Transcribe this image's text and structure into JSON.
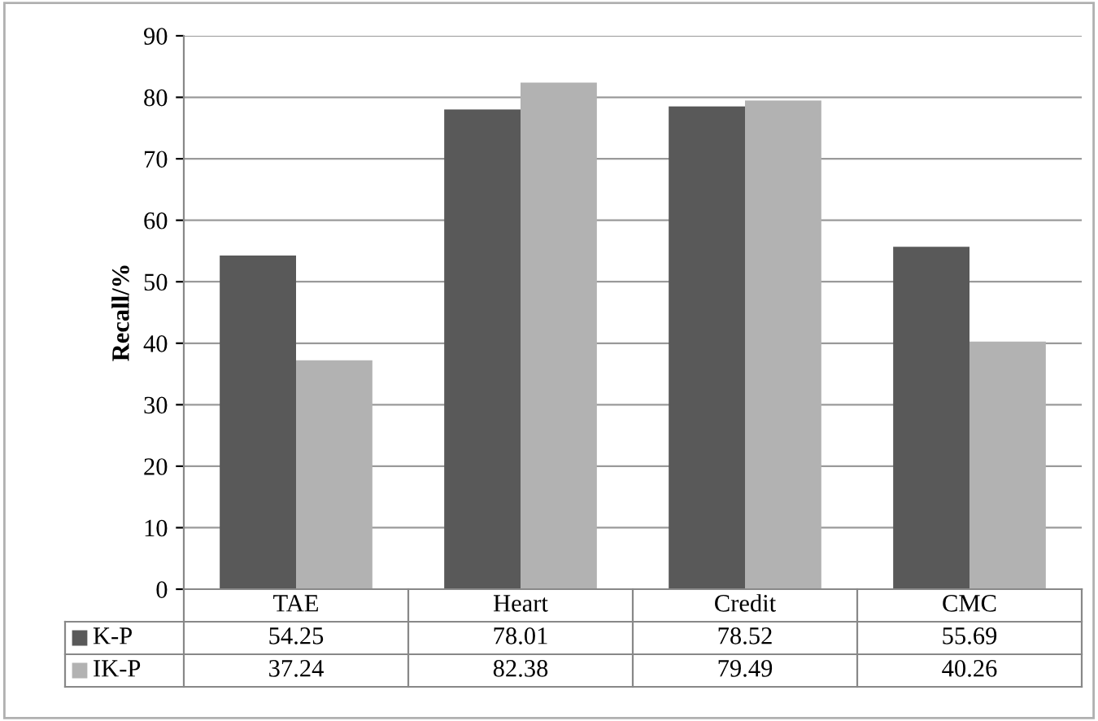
{
  "chart_data": {
    "type": "bar",
    "ylabel": "Recall/%",
    "categories": [
      "TAE",
      "Heart",
      "Credit",
      "CMC"
    ],
    "series": [
      {
        "name": "K-P",
        "color": "#595959",
        "values": [
          54.25,
          78.01,
          78.52,
          55.69
        ]
      },
      {
        "name": "IK-P",
        "color": "#b2b2b2",
        "values": [
          37.24,
          82.38,
          79.49,
          40.26
        ]
      }
    ],
    "ylim": [
      0,
      90
    ],
    "yticks": [
      0,
      10,
      20,
      30,
      40,
      50,
      60,
      70,
      80,
      90
    ],
    "grid": "y",
    "legend": "bottom left",
    "data_labels": true
  }
}
